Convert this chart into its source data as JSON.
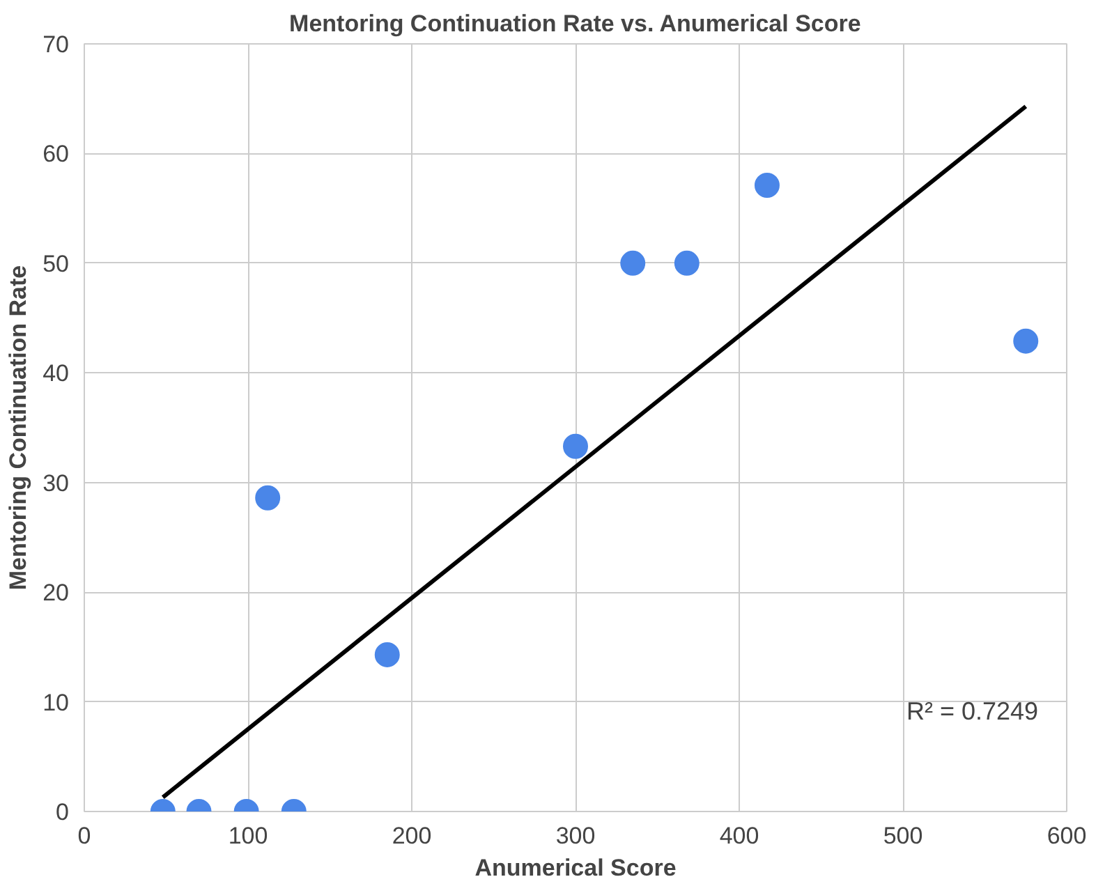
{
  "chart_data": {
    "type": "scatter",
    "title": "Mentoring Continuation Rate vs. Anumerical Score",
    "xlabel": "Anumerical Score",
    "ylabel": "Mentoring Continuation Rate",
    "xlim": [
      0,
      600
    ],
    "xticks": [
      0,
      100,
      200,
      300,
      400,
      500,
      600
    ],
    "ylim": [
      0,
      70
    ],
    "yticks": [
      0,
      10,
      20,
      30,
      40,
      50,
      60,
      70
    ],
    "grid": true,
    "series": [
      {
        "marker": "circle",
        "color": "#4a86e8",
        "x": [
          48,
          70,
          99,
          128,
          112,
          185,
          300,
          335,
          368,
          417,
          575
        ],
        "values": [
          0,
          0,
          0,
          0,
          28.6,
          14.3,
          33.3,
          50,
          50,
          57.1,
          42.9
        ]
      },
      {
        "type": "line",
        "color": "#000000",
        "x": [
          48,
          575
        ],
        "values": [
          1.3,
          64.3
        ]
      }
    ],
    "annotations": [
      "R² = 0.7249"
    ]
  }
}
